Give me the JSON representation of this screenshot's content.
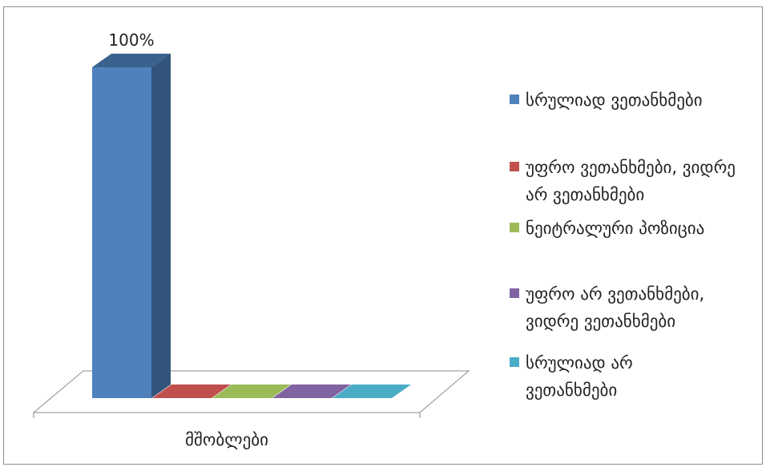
{
  "chart_data": {
    "type": "bar",
    "three_d": true,
    "categories": [
      "მშობლები"
    ],
    "series": [
      {
        "name": "სრულიად ვეთანხმები",
        "values": [
          100
        ],
        "color": "#4F81BD",
        "data_label": "100%"
      },
      {
        "name": "უფრო ვეთანხმები, ვიდრე არ ვეთანხმები",
        "values": [
          0
        ],
        "color": "#C0504D",
        "data_label": ""
      },
      {
        "name": "ნეიტრალური პოზიცია",
        "values": [
          0
        ],
        "color": "#9BBB59",
        "data_label": ""
      },
      {
        "name": "უფრო არ ვეთანხმები, ვიდრე ვეთანხმები",
        "values": [
          0
        ],
        "color": "#8064A2",
        "data_label": ""
      },
      {
        "name": "სრულიად არ ვეთანხმები",
        "values": [
          0
        ],
        "color": "#4BACC6",
        "data_label": ""
      }
    ],
    "ylim": [
      0,
      100
    ],
    "grid": false,
    "legend_position": "right"
  }
}
